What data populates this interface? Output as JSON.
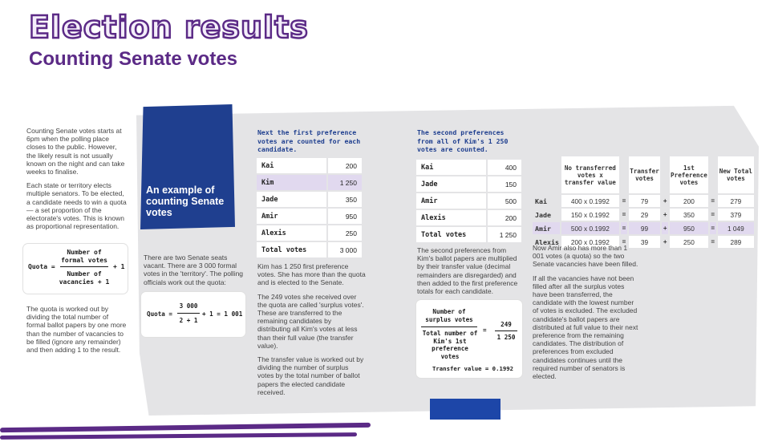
{
  "header": {
    "title": "Election results",
    "subtitle": "Counting Senate votes"
  },
  "intro": {
    "para1": "Counting Senate votes starts at 6pm when the polling place closes to the public. However, the likely result is not usually known on the night and can take weeks to finalise.",
    "para2": "Each state or territory elects multiple senators. To be elected, a candidate needs to win a quota — a set proportion of the electorate's votes. This is known as proportional representation.",
    "quota_label": "Quota =",
    "quota_numerator": "Number of formal votes",
    "quota_denominator": "Number of vacancies + 1",
    "quota_plus": "+ 1",
    "para3": "The quota is worked out by dividing the total number of formal ballot papers by one more than the number of vacancies to be filled (ignore any remainder) and then adding 1 to the result."
  },
  "example": {
    "card_title": "An example of counting Senate votes",
    "text": "There are two Senate seats vacant. There are 3 000 formal votes in the 'territory'. The polling officials work out the quota:",
    "formula": {
      "label": "Quota =",
      "numerator": "3 000",
      "denominator": "2 + 1",
      "result": "+ 1 = 1 001"
    }
  },
  "first_prefs": {
    "heading": "Next the first preference votes are counted for each candidate.",
    "rows": [
      {
        "name": "Kai",
        "votes": "200"
      },
      {
        "name": "Kim",
        "votes": "1 250"
      },
      {
        "name": "Jade",
        "votes": "350"
      },
      {
        "name": "Amir",
        "votes": "950"
      },
      {
        "name": "Alexis",
        "votes": "250"
      }
    ],
    "total_label": "Total votes",
    "total": "3 000",
    "para1": "Kim has 1 250 first preference votes. She has more than the quota and is elected to the Senate.",
    "para2": "The 249 votes she received over the quota are called 'surplus votes'. These are transferred to the remaining candidates by distributing all Kim's votes at less than their full value (the transfer value).",
    "para3": "The transfer value is worked out by dividing the number of surplus votes by the total number of ballot papers the elected candidate received."
  },
  "second_prefs": {
    "heading": "The second preferences from all of Kim's 1 250 votes are counted.",
    "rows": [
      {
        "name": "Kai",
        "votes": "400"
      },
      {
        "name": "Jade",
        "votes": "150"
      },
      {
        "name": "Amir",
        "votes": "500"
      },
      {
        "name": "Alexis",
        "votes": "200"
      }
    ],
    "total_label": "Total votes",
    "total": "1 250",
    "para": "The second preferences from Kim's ballot papers are multiplied by their transfer value (decimal remainders are disregarded) and then added to the first preference totals for each candidate.",
    "formula": {
      "top_label": "Number of surplus votes",
      "bottom_label": "Total number of Kim's 1st preference votes",
      "equals": "=",
      "numerator": "249",
      "denominator": "1 250",
      "transfer": "Transfer value = 0.1992"
    }
  },
  "transfer_table": {
    "headers": [
      "No transferred votes x transfer value",
      "Transfer votes",
      "1st Preference votes",
      "New Total votes"
    ],
    "ops": [
      "=",
      "+",
      "="
    ],
    "rows": [
      {
        "name": "Kai",
        "calc": "400 x 0.1992",
        "transfer": "79",
        "first": "200",
        "total": "279"
      },
      {
        "name": "Jade",
        "calc": "150 x 0.1992",
        "transfer": "29",
        "first": "350",
        "total": "379"
      },
      {
        "name": "Amir",
        "calc": "500 x 0.1992",
        "transfer": "99",
        "first": "950",
        "total": "1 049"
      },
      {
        "name": "Alexis",
        "calc": "200 x 0.1992",
        "transfer": "39",
        "first": "250",
        "total": "289"
      }
    ],
    "para1": "Now Amir also has more than 1 001 votes (a quota) so the two Senate vacancies have been filled.",
    "para2": "If all the vacancies have not been filled after all the surplus votes have been transferred, the candidate with the lowest number of votes is excluded. The excluded candidate's ballot papers are distributed at full value to their next preference from the remaining candidates. The distribution of preferences from excluded candidates continues until the required number of senators is elected."
  },
  "colors": {
    "purple": "#5b2a86",
    "navy": "#1f3f8f",
    "highlight": "#e1d9ef",
    "panel": "#e4e4e6"
  }
}
